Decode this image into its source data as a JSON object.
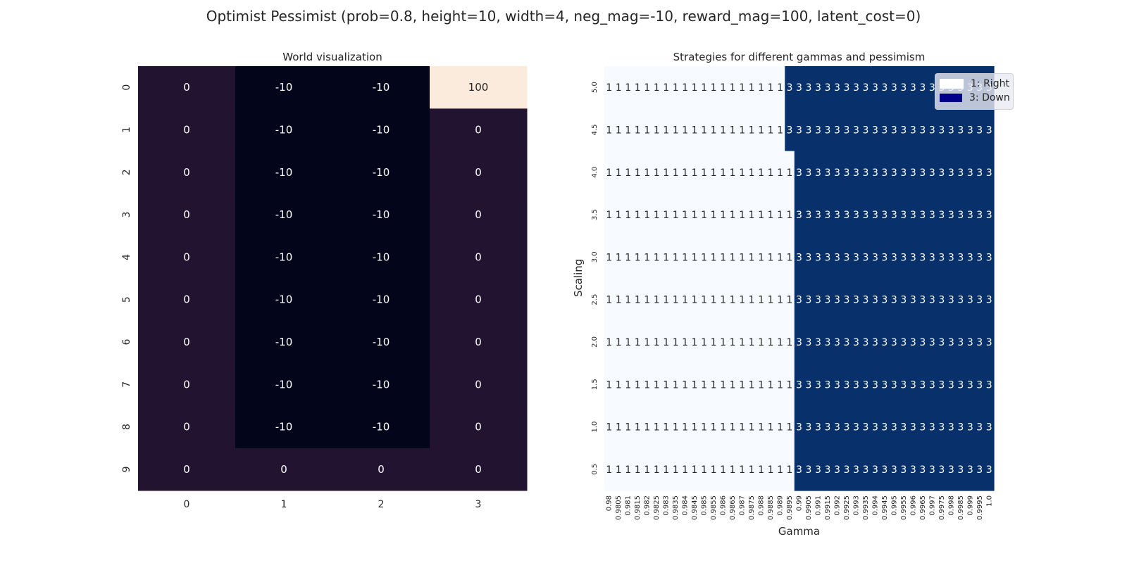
{
  "suptitle": "Optimist Pessimist (prob=0.8, height=10, width=4, neg_mag=-10, reward_mag=100, latent_cost=0)",
  "chart_data": [
    {
      "type": "heatmap",
      "title": "World visualization",
      "xlabel": "",
      "ylabel": "",
      "x_ticks": [
        "0",
        "1",
        "2",
        "3"
      ],
      "y_ticks": [
        "0",
        "1",
        "2",
        "3",
        "4",
        "5",
        "6",
        "7",
        "8",
        "9"
      ],
      "values": [
        [
          0,
          -10,
          -10,
          100
        ],
        [
          0,
          -10,
          -10,
          0
        ],
        [
          0,
          -10,
          -10,
          0
        ],
        [
          0,
          -10,
          -10,
          0
        ],
        [
          0,
          -10,
          -10,
          0
        ],
        [
          0,
          -10,
          -10,
          0
        ],
        [
          0,
          -10,
          -10,
          0
        ],
        [
          0,
          -10,
          -10,
          0
        ],
        [
          0,
          -10,
          -10,
          0
        ],
        [
          0,
          0,
          0,
          0
        ]
      ],
      "colormap": {
        "low": "#03051a",
        "mid": "#221331",
        "high": "#faebdd"
      },
      "annotation_color": "#ffffff",
      "annotation_color_high": "#262626"
    },
    {
      "type": "heatmap",
      "title": "Strategies for different gammas and pessimism",
      "xlabel": "Gamma",
      "ylabel": "Scaling",
      "x_ticks": [
        "0.98",
        "0.9805",
        "0.981",
        "0.9815",
        "0.982",
        "0.9825",
        "0.983",
        "0.9835",
        "0.984",
        "0.9845",
        "0.985",
        "0.9855",
        "0.986",
        "0.9865",
        "0.987",
        "0.9875",
        "0.988",
        "0.9885",
        "0.989",
        "0.9895",
        "0.99",
        "0.9905",
        "0.991",
        "0.9915",
        "0.992",
        "0.9925",
        "0.993",
        "0.9935",
        "0.994",
        "0.9945",
        "0.995",
        "0.9955",
        "0.996",
        "0.9965",
        "0.997",
        "0.9975",
        "0.998",
        "0.9985",
        "0.999",
        "0.9995",
        "1.0"
      ],
      "y_ticks": [
        "5.0",
        "4.5",
        "4.0",
        "3.5",
        "3.0",
        "2.5",
        "2.0",
        "1.5",
        "1.0",
        "0.5"
      ],
      "switch_index_per_row": [
        19,
        19,
        20,
        20,
        20,
        20,
        20,
        20,
        20,
        20
      ],
      "value_before_switch": 1,
      "value_after_switch": 3,
      "colors": {
        "1": "#f7fbff",
        "3": "#08306b"
      },
      "legend": [
        {
          "label": "1: Right",
          "color": "#ffffff"
        },
        {
          "label": "3: Down",
          "color": "#00008b"
        }
      ],
      "legend_position": "top-right"
    }
  ]
}
